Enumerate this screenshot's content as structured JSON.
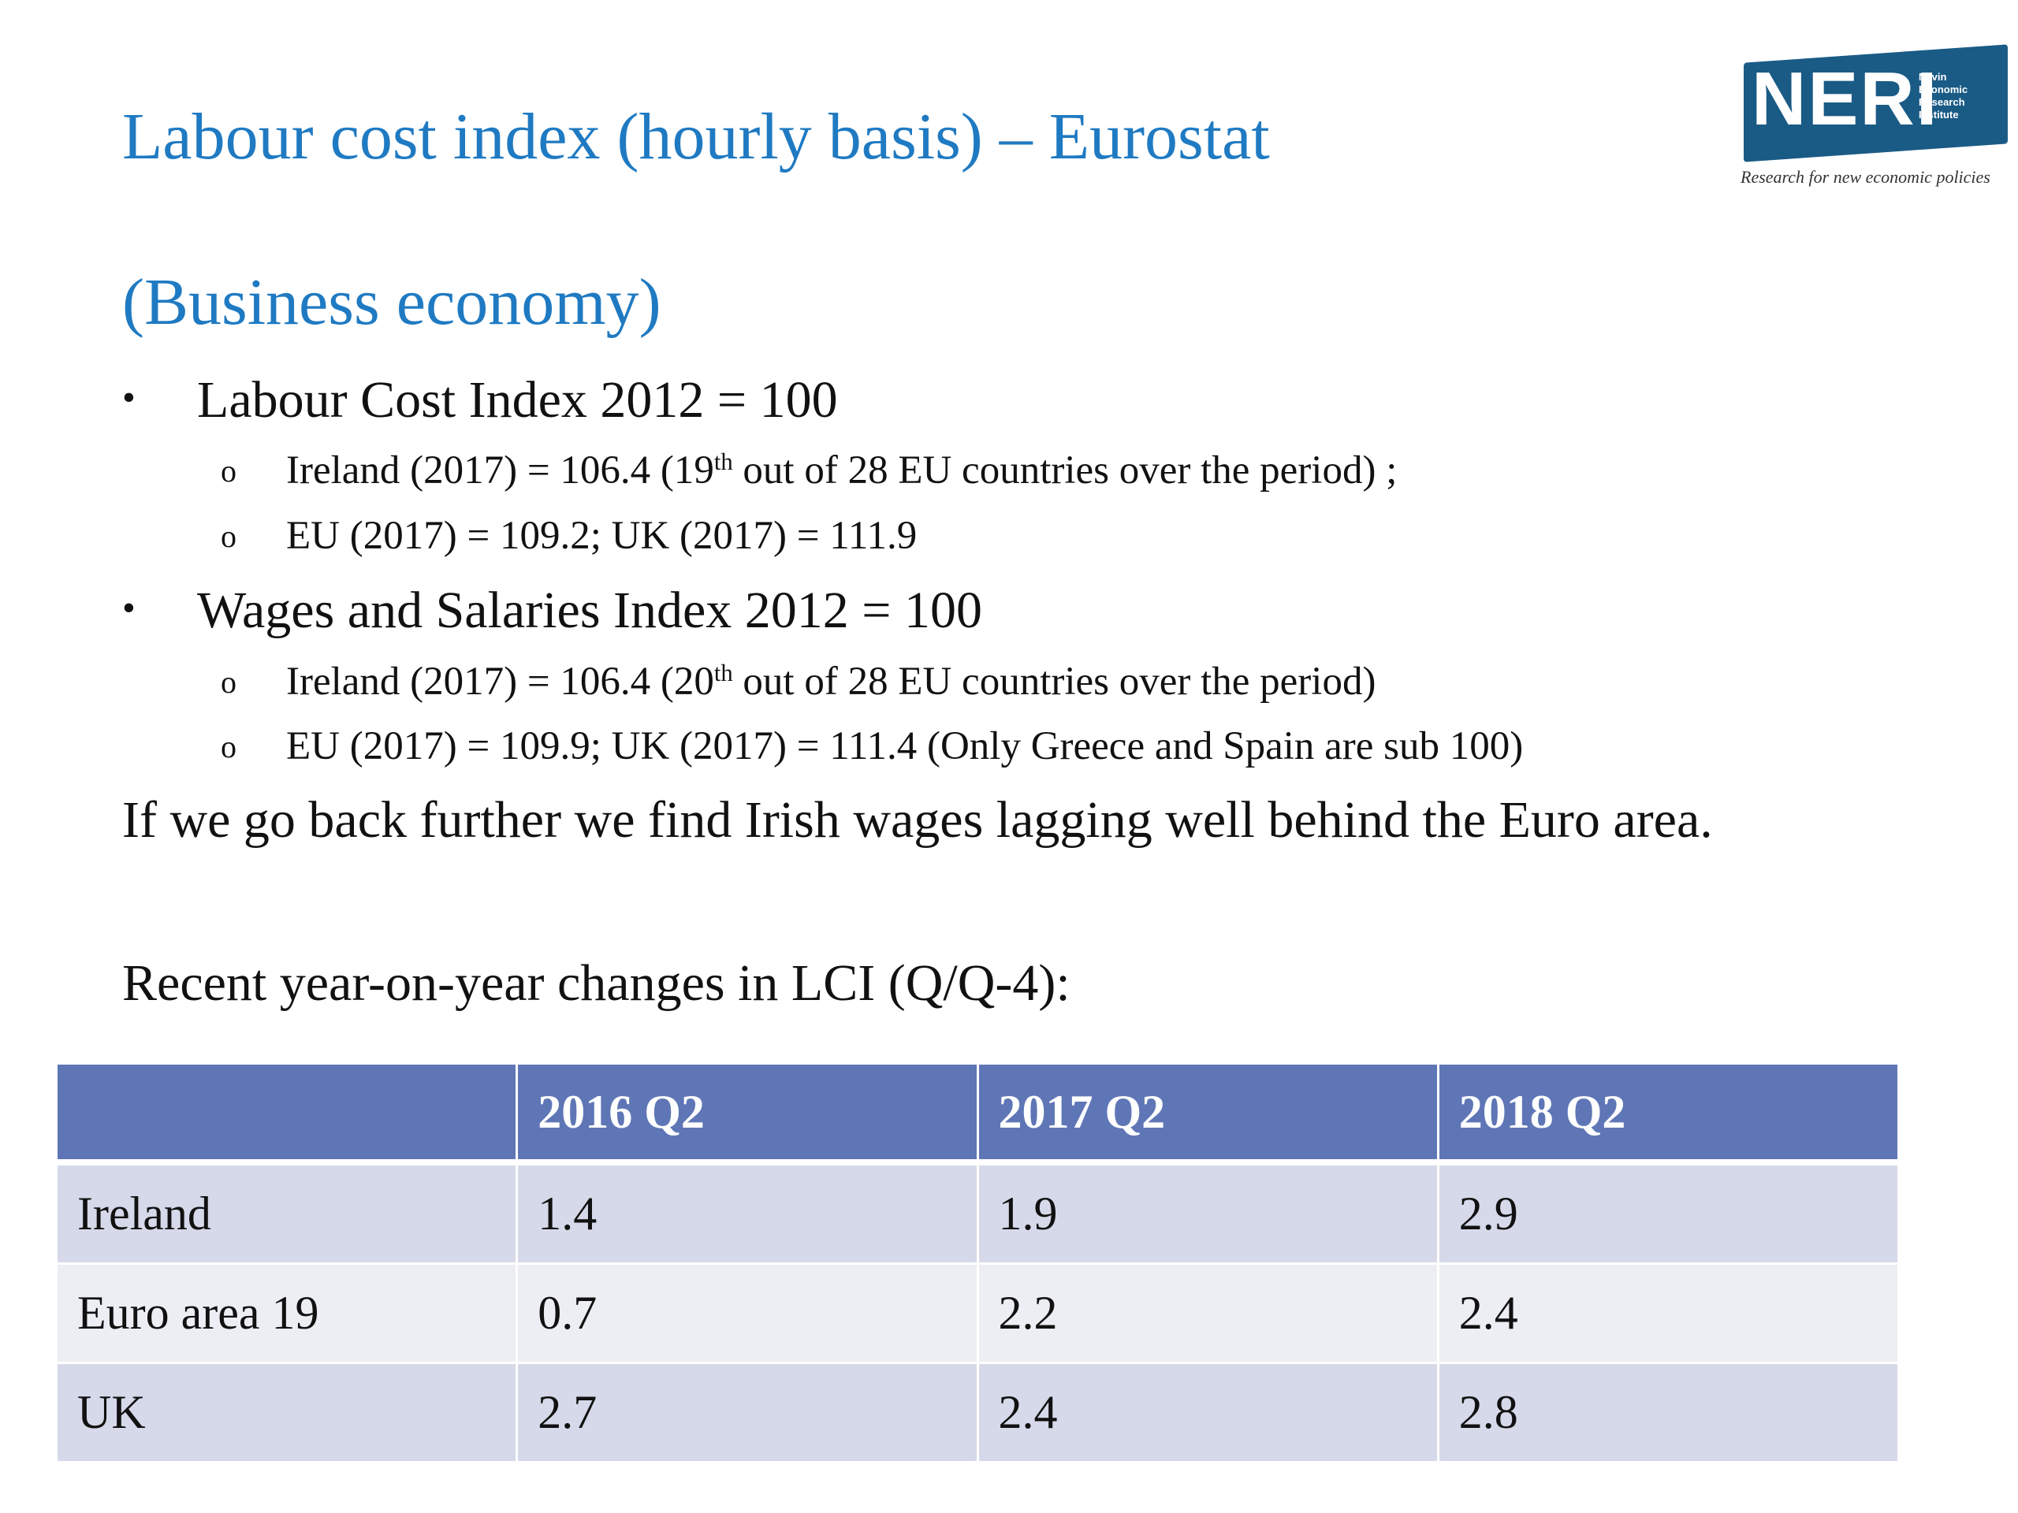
{
  "title": {
    "line1": "Labour cost index (hourly basis) – Eurostat",
    "line2": "(Business economy)"
  },
  "logo": {
    "word": "NERI",
    "small_lines": [
      "Nevin",
      "Economic",
      "Research",
      "Institute"
    ],
    "tagline": "Research for new economic policies",
    "color": "#1a5b86"
  },
  "bullets": [
    {
      "text": "Labour Cost Index 2012 = 100",
      "sub": [
        {
          "before": "Ireland (2017) = 106.4 (19",
          "sup": "th",
          "after": " out of 28 EU countries over the period) ;"
        },
        {
          "before": "EU (2017) = 109.2; UK (2017) = 111.9",
          "sup": "",
          "after": ""
        }
      ]
    },
    {
      "text": "Wages and Salaries Index 2012 = 100",
      "sub": [
        {
          "before": "Ireland (2017) = 106.4 (20",
          "sup": "th",
          "after": " out of 28 EU countries over the period)"
        },
        {
          "before": "EU (2017) = 109.9; UK (2017) = 111.4 (Only Greece and Spain are sub 100)",
          "sup": "",
          "after": ""
        }
      ]
    }
  ],
  "bullet_glyph": "•",
  "sub_bullet_glyph": "o",
  "paragraph1": "If we go back further we find Irish wages lagging well behind the Euro area.",
  "paragraph2": "Recent year-on-year changes in LCI (Q/Q-4):",
  "table": {
    "headers": [
      "",
      "2016 Q2",
      "2017 Q2",
      "2018 Q2"
    ],
    "rows": [
      [
        "Ireland",
        "1.4",
        "1.9",
        "2.9"
      ],
      [
        "Euro area 19",
        "0.7",
        "2.2",
        "2.4"
      ],
      [
        "UK",
        "2.7",
        "2.4",
        "2.8"
      ]
    ],
    "header_color": "#5f76b6"
  }
}
